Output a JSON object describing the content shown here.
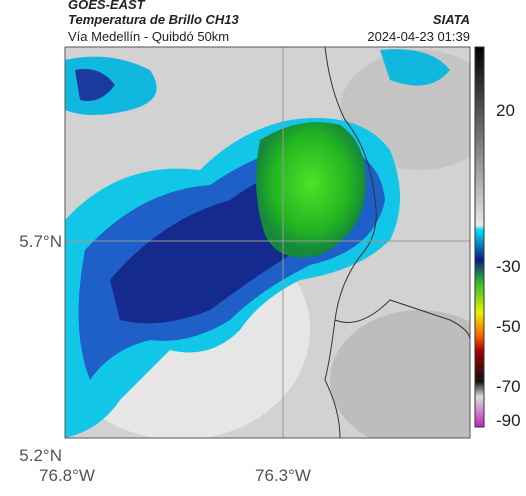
{
  "header": {
    "satellite": "GOES-EAST",
    "product": "Temperatura de Brillo CH13",
    "credit": "SIATA",
    "route": "Vía Medellín - Quibdó 50km",
    "timestamp": "2024-04-23 01:39"
  },
  "axes": {
    "lat_labels": [
      "5.7°N",
      "5.2°N"
    ],
    "lon_labels": [
      "76.8°W",
      "76.3°W"
    ]
  },
  "colorbar": {
    "ticks": [
      "20",
      "-30",
      "-50",
      "-70",
      "-90"
    ]
  }
}
